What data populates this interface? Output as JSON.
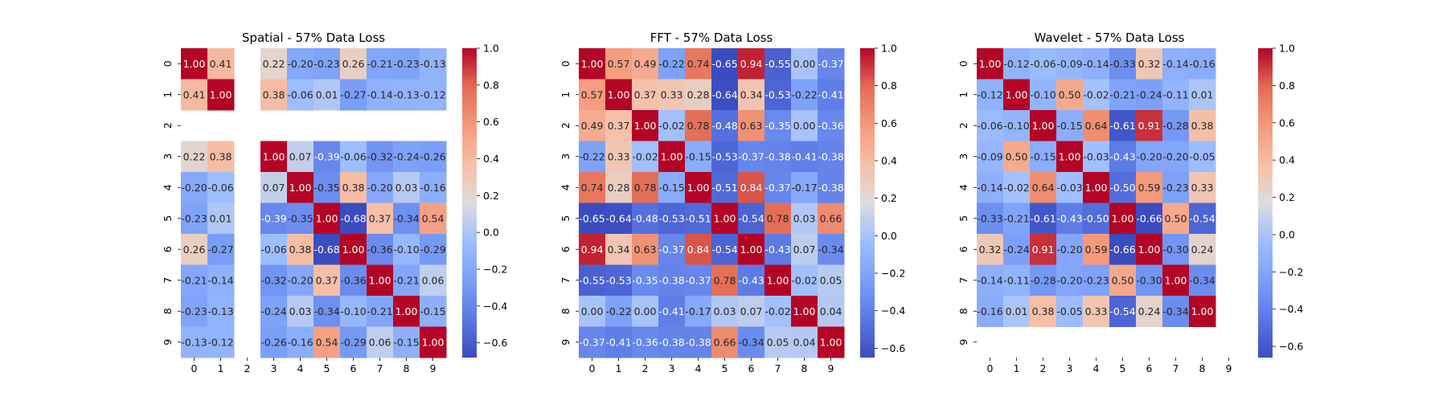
{
  "chart_data": [
    {
      "type": "heatmap",
      "title": "Spatial - 57% Data Loss",
      "x": [
        "0",
        "1",
        "2",
        "3",
        "4",
        "5",
        "6",
        "7",
        "8",
        "9"
      ],
      "y": [
        "0",
        "1",
        "2",
        "3",
        "4",
        "5",
        "6",
        "7",
        "8",
        "9"
      ],
      "values": [
        [
          1.0,
          0.41,
          null,
          0.22,
          -0.2,
          -0.23,
          0.26,
          -0.21,
          -0.23,
          -0.13
        ],
        [
          0.41,
          1.0,
          null,
          0.38,
          -0.06,
          0.01,
          -0.27,
          -0.14,
          -0.13,
          -0.12
        ],
        [
          null,
          null,
          null,
          null,
          null,
          null,
          null,
          null,
          null,
          null
        ],
        [
          0.22,
          0.38,
          null,
          1.0,
          0.07,
          -0.39,
          -0.06,
          -0.32,
          -0.24,
          -0.26
        ],
        [
          -0.2,
          -0.06,
          null,
          0.07,
          1.0,
          -0.35,
          0.38,
          -0.2,
          0.03,
          -0.16
        ],
        [
          -0.23,
          0.01,
          null,
          -0.39,
          -0.35,
          1.0,
          -0.68,
          0.37,
          -0.34,
          0.54
        ],
        [
          0.26,
          -0.27,
          null,
          -0.06,
          0.38,
          -0.68,
          1.0,
          -0.36,
          -0.1,
          -0.29
        ],
        [
          -0.21,
          -0.14,
          null,
          -0.32,
          -0.2,
          0.37,
          -0.36,
          1.0,
          -0.21,
          0.06
        ],
        [
          -0.23,
          -0.13,
          null,
          -0.24,
          0.03,
          -0.34,
          -0.1,
          -0.21,
          1.0,
          -0.15
        ],
        [
          -0.13,
          -0.12,
          null,
          -0.26,
          -0.16,
          0.54,
          -0.29,
          0.06,
          -0.15,
          1.0
        ]
      ],
      "vmin": -0.68,
      "vmax": 1.0,
      "colorbar_ticks": [
        "-0.6",
        "-0.4",
        "-0.2",
        "0.0",
        "0.2",
        "0.4",
        "0.6",
        "0.8",
        "1.0"
      ],
      "colormap": "coolwarm"
    },
    {
      "type": "heatmap",
      "title": "FFT - 57% Data Loss",
      "x": [
        "0",
        "1",
        "2",
        "3",
        "4",
        "5",
        "6",
        "7",
        "8",
        "9"
      ],
      "y": [
        "0",
        "1",
        "2",
        "3",
        "4",
        "5",
        "6",
        "7",
        "8",
        "9"
      ],
      "values": [
        [
          1.0,
          0.57,
          0.49,
          -0.22,
          0.74,
          -0.65,
          0.94,
          -0.55,
          0.0,
          -0.37
        ],
        [
          0.57,
          1.0,
          0.37,
          0.33,
          0.28,
          -0.64,
          0.34,
          -0.53,
          -0.22,
          -0.41
        ],
        [
          0.49,
          0.37,
          1.0,
          -0.02,
          0.78,
          -0.48,
          0.63,
          -0.35,
          0.0,
          -0.36
        ],
        [
          -0.22,
          0.33,
          -0.02,
          1.0,
          -0.15,
          -0.53,
          -0.37,
          -0.38,
          -0.41,
          -0.38
        ],
        [
          0.74,
          0.28,
          0.78,
          -0.15,
          1.0,
          -0.51,
          0.84,
          -0.37,
          -0.17,
          -0.38
        ],
        [
          -0.65,
          -0.64,
          -0.48,
          -0.53,
          -0.51,
          1.0,
          -0.54,
          0.78,
          0.03,
          0.66
        ],
        [
          0.94,
          0.34,
          0.63,
          -0.37,
          0.84,
          -0.54,
          1.0,
          -0.43,
          0.07,
          -0.34
        ],
        [
          -0.55,
          -0.53,
          -0.35,
          -0.38,
          -0.37,
          0.78,
          -0.43,
          1.0,
          -0.02,
          0.05
        ],
        [
          0.0,
          -0.22,
          0.0,
          -0.41,
          -0.17,
          0.03,
          0.07,
          -0.02,
          1.0,
          0.04
        ],
        [
          -0.37,
          -0.41,
          -0.36,
          -0.38,
          -0.38,
          0.66,
          -0.34,
          0.05,
          0.04,
          1.0
        ]
      ],
      "vmin": -0.65,
      "vmax": 1.0,
      "colorbar_ticks": [
        "-0.6",
        "-0.4",
        "-0.2",
        "0.0",
        "0.2",
        "0.4",
        "0.6",
        "0.8",
        "1.0"
      ],
      "colormap": "coolwarm"
    },
    {
      "type": "heatmap",
      "title": "Wavelet - 57% Data Loss",
      "x": [
        "0",
        "1",
        "2",
        "3",
        "4",
        "5",
        "6",
        "7",
        "8",
        "9"
      ],
      "y": [
        "0",
        "1",
        "2",
        "3",
        "4",
        "5",
        "6",
        "7",
        "8",
        "9"
      ],
      "values": [
        [
          1.0,
          -0.12,
          -0.06,
          -0.09,
          -0.14,
          -0.33,
          0.32,
          -0.14,
          -0.16,
          null
        ],
        [
          -0.12,
          1.0,
          -0.1,
          0.5,
          -0.02,
          -0.21,
          -0.24,
          -0.11,
          0.01,
          null
        ],
        [
          -0.06,
          -0.1,
          1.0,
          -0.15,
          0.64,
          -0.61,
          0.91,
          -0.28,
          0.38,
          null
        ],
        [
          -0.09,
          0.5,
          -0.15,
          1.0,
          -0.03,
          -0.43,
          -0.2,
          -0.2,
          -0.05,
          null
        ],
        [
          -0.14,
          -0.02,
          0.64,
          -0.03,
          1.0,
          -0.5,
          0.59,
          -0.23,
          0.33,
          null
        ],
        [
          -0.33,
          -0.21,
          -0.61,
          -0.43,
          -0.5,
          1.0,
          -0.66,
          0.5,
          -0.54,
          null
        ],
        [
          0.32,
          -0.24,
          0.91,
          -0.2,
          0.59,
          -0.66,
          1.0,
          -0.3,
          0.24,
          null
        ],
        [
          -0.14,
          -0.11,
          -0.28,
          -0.2,
          -0.23,
          0.5,
          -0.3,
          1.0,
          -0.34,
          null
        ],
        [
          -0.16,
          0.01,
          0.38,
          -0.05,
          0.33,
          -0.54,
          0.24,
          -0.34,
          1.0,
          null
        ],
        [
          null,
          null,
          null,
          null,
          null,
          null,
          null,
          null,
          null,
          null
        ]
      ],
      "vmin": -0.66,
      "vmax": 1.0,
      "colorbar_ticks": [
        "-0.6",
        "-0.4",
        "-0.2",
        "0.0",
        "0.2",
        "0.4",
        "0.6",
        "0.8",
        "1.0"
      ],
      "colormap": "coolwarm"
    }
  ]
}
